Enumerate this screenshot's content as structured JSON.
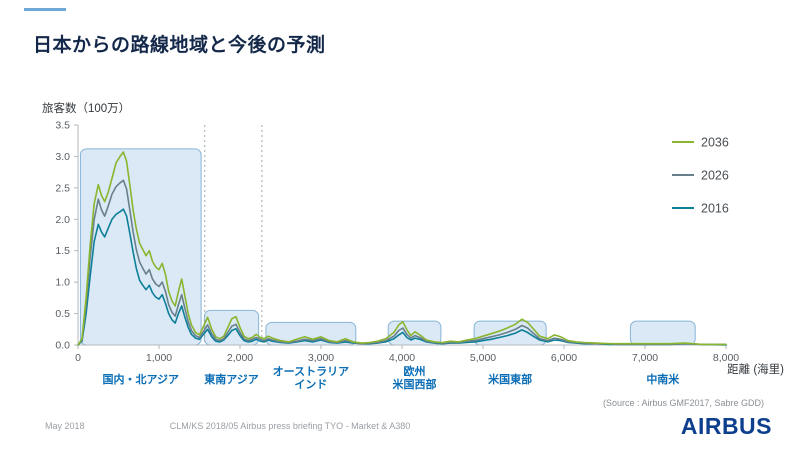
{
  "slide": {
    "title": "日本からの路線地域と今後の予測",
    "source": "(Source : Airbus GMF2017, Sabre GDD)",
    "footer": {
      "date": "May 2018",
      "reference": "CLM/KS 2018/05 Airbus press briefing TYO - Market & A380"
    },
    "logo_text": "AIRBUS"
  },
  "chart_data": {
    "type": "line",
    "title": "",
    "ylabel": "旅客数（100万）",
    "xlabel": "距離 (海里)",
    "xlim": [
      0,
      8000
    ],
    "ylim": [
      0,
      3.5
    ],
    "xticks": [
      0,
      1000,
      2000,
      3000,
      4000,
      5000,
      6000,
      7000,
      8000
    ],
    "yticks": [
      0,
      0.5,
      1,
      1.5,
      2,
      2.5,
      3,
      3.5
    ],
    "legend_position": "right",
    "grid": false,
    "colors": {
      "region_fill": "#dae9f5",
      "region_stroke": "#88b5d8",
      "region_label": "#0a6db5",
      "axis": "#b3b9be"
    },
    "x": [
      0,
      50,
      100,
      150,
      200,
      250,
      290,
      330,
      370,
      420,
      470,
      520,
      560,
      600,
      640,
      680,
      720,
      760,
      800,
      840,
      880,
      920,
      960,
      1000,
      1040,
      1080,
      1120,
      1160,
      1200,
      1240,
      1280,
      1320,
      1360,
      1400,
      1450,
      1500,
      1550,
      1600,
      1650,
      1700,
      1750,
      1800,
      1850,
      1900,
      1950,
      2000,
      2050,
      2100,
      2150,
      2200,
      2250,
      2300,
      2350,
      2400,
      2500,
      2600,
      2700,
      2800,
      2900,
      3000,
      3100,
      3200,
      3300,
      3400,
      3500,
      3600,
      3700,
      3800,
      3900,
      3960,
      4010,
      4060,
      4110,
      4160,
      4220,
      4300,
      4400,
      4500,
      4600,
      4700,
      4800,
      4900,
      5000,
      5100,
      5200,
      5300,
      5400,
      5480,
      5550,
      5620,
      5700,
      5800,
      5880,
      5960,
      6050,
      6150,
      6250,
      6400,
      6550,
      6700,
      6900,
      7100,
      7300,
      7500,
      7700,
      8000
    ],
    "series": [
      {
        "name": "2036",
        "color": "#8ab52e",
        "values": [
          0,
          0.1,
          0.75,
          1.6,
          2.25,
          2.55,
          2.38,
          2.28,
          2.42,
          2.65,
          2.9,
          3.0,
          3.07,
          2.92,
          2.55,
          2.15,
          1.85,
          1.62,
          1.52,
          1.42,
          1.5,
          1.33,
          1.24,
          1.2,
          1.3,
          1.12,
          0.85,
          0.7,
          0.62,
          0.85,
          1.05,
          0.78,
          0.5,
          0.32,
          0.2,
          0.16,
          0.3,
          0.44,
          0.25,
          0.13,
          0.1,
          0.14,
          0.28,
          0.42,
          0.45,
          0.28,
          0.14,
          0.1,
          0.12,
          0.17,
          0.12,
          0.1,
          0.14,
          0.11,
          0.07,
          0.05,
          0.09,
          0.13,
          0.09,
          0.13,
          0.07,
          0.05,
          0.1,
          0.05,
          0.03,
          0.04,
          0.06,
          0.1,
          0.2,
          0.32,
          0.37,
          0.24,
          0.15,
          0.21,
          0.16,
          0.08,
          0.05,
          0.04,
          0.06,
          0.05,
          0.08,
          0.1,
          0.14,
          0.18,
          0.22,
          0.27,
          0.33,
          0.41,
          0.36,
          0.26,
          0.14,
          0.1,
          0.16,
          0.13,
          0.07,
          0.05,
          0.04,
          0.03,
          0.02,
          0.02,
          0.02,
          0.02,
          0.02,
          0.03,
          0.01,
          0.01
        ]
      },
      {
        "name": "2026",
        "color": "#68808c",
        "values": [
          0,
          0.08,
          0.65,
          1.4,
          2.0,
          2.32,
          2.15,
          2.05,
          2.2,
          2.4,
          2.52,
          2.58,
          2.62,
          2.48,
          2.15,
          1.8,
          1.52,
          1.32,
          1.22,
          1.13,
          1.2,
          1.05,
          0.97,
          0.93,
          1.0,
          0.85,
          0.64,
          0.52,
          0.46,
          0.64,
          0.8,
          0.58,
          0.37,
          0.23,
          0.15,
          0.12,
          0.22,
          0.32,
          0.18,
          0.09,
          0.07,
          0.1,
          0.2,
          0.3,
          0.33,
          0.2,
          0.1,
          0.07,
          0.09,
          0.12,
          0.09,
          0.07,
          0.1,
          0.08,
          0.05,
          0.04,
          0.06,
          0.09,
          0.07,
          0.1,
          0.05,
          0.04,
          0.07,
          0.04,
          0.02,
          0.03,
          0.04,
          0.07,
          0.14,
          0.23,
          0.27,
          0.17,
          0.11,
          0.15,
          0.12,
          0.06,
          0.04,
          0.03,
          0.04,
          0.04,
          0.06,
          0.07,
          0.1,
          0.13,
          0.16,
          0.2,
          0.25,
          0.31,
          0.27,
          0.19,
          0.1,
          0.07,
          0.11,
          0.09,
          0.05,
          0.04,
          0.03,
          0.02,
          0.02,
          0.01,
          0.01,
          0.01,
          0.01,
          0.02,
          0.01,
          0.01
        ]
      },
      {
        "name": "2016",
        "color": "#0c7f99",
        "values": [
          0,
          0.06,
          0.5,
          1.1,
          1.65,
          1.92,
          1.8,
          1.72,
          1.85,
          2.0,
          2.08,
          2.12,
          2.16,
          2.05,
          1.78,
          1.48,
          1.22,
          1.03,
          0.95,
          0.88,
          0.95,
          0.83,
          0.76,
          0.73,
          0.8,
          0.66,
          0.5,
          0.4,
          0.35,
          0.5,
          0.62,
          0.44,
          0.28,
          0.17,
          0.11,
          0.09,
          0.17,
          0.25,
          0.13,
          0.06,
          0.05,
          0.08,
          0.15,
          0.23,
          0.26,
          0.15,
          0.07,
          0.05,
          0.06,
          0.09,
          0.06,
          0.05,
          0.08,
          0.06,
          0.04,
          0.03,
          0.05,
          0.07,
          0.05,
          0.08,
          0.04,
          0.03,
          0.05,
          0.03,
          0.02,
          0.02,
          0.03,
          0.05,
          0.1,
          0.16,
          0.2,
          0.12,
          0.08,
          0.11,
          0.09,
          0.05,
          0.03,
          0.02,
          0.03,
          0.03,
          0.04,
          0.05,
          0.07,
          0.09,
          0.12,
          0.15,
          0.19,
          0.24,
          0.2,
          0.14,
          0.08,
          0.05,
          0.08,
          0.07,
          0.04,
          0.03,
          0.02,
          0.02,
          0.01,
          0.01,
          0.01,
          0.01,
          0.01,
          0.02,
          0.01,
          0
        ]
      }
    ],
    "regions": [
      {
        "label_lines": [
          "国内・北アジア"
        ],
        "x0": 30,
        "x1": 1520,
        "height": 3.12
      },
      {
        "label_lines": [
          "東南アジア"
        ],
        "x0": 1560,
        "x1": 2230,
        "height": 0.55
      },
      {
        "label_lines": [
          "オーストラリア",
          "インド"
        ],
        "x0": 2320,
        "x1": 3430,
        "height": 0.36
      },
      {
        "label_lines": [
          "欧州",
          "米国西部"
        ],
        "x0": 3830,
        "x1": 4480,
        "height": 0.38
      },
      {
        "label_lines": [
          "米国東部"
        ],
        "x0": 4890,
        "x1": 5780,
        "height": 0.38
      },
      {
        "label_lines": [
          "中南米"
        ],
        "x0": 6820,
        "x1": 7620,
        "height": 0.38
      }
    ],
    "dashed_lines": [
      1565,
      2270
    ]
  }
}
